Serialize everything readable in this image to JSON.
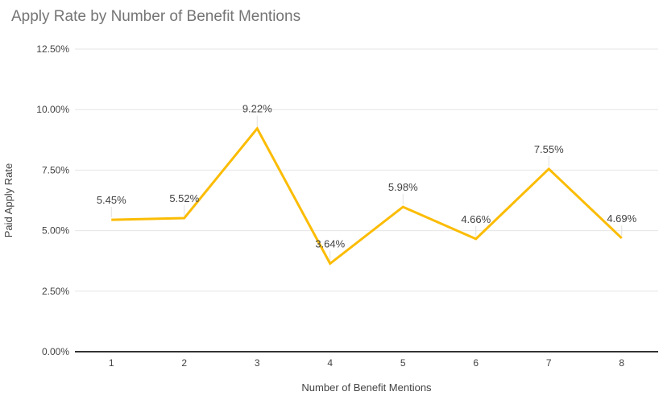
{
  "chart_data": {
    "type": "line",
    "title": "Apply Rate by Number of Benefit Mentions",
    "xlabel": "Number of Benefit Mentions",
    "ylabel": "Paid Apply Rate",
    "categories": [
      "1",
      "2",
      "3",
      "4",
      "5",
      "6",
      "7",
      "8"
    ],
    "series": [
      {
        "name": "Paid Apply Rate",
        "values": [
          5.45,
          5.52,
          9.22,
          3.64,
          5.98,
          4.66,
          7.55,
          4.69
        ],
        "value_labels": [
          "5.45%",
          "5.52%",
          "9.22%",
          "3.64%",
          "5.98%",
          "4.66%",
          "7.55%",
          "4.69%"
        ],
        "color": "#FBBC04"
      }
    ],
    "ylim": [
      0,
      12.5
    ],
    "y_ticks": [
      0,
      2.5,
      5,
      7.5,
      10,
      12.5
    ],
    "y_tick_labels": [
      "0.00%",
      "2.50%",
      "5.00%",
      "7.50%",
      "10.00%",
      "12.50%"
    ],
    "grid": "horizontal",
    "legend": "none",
    "colors": {
      "title": "#757575",
      "tick_label": "#424242",
      "data_label": "#424242",
      "axis_title": "#424242",
      "gridline": "#E6E6E6",
      "axis_line": "#333333",
      "leader_line": "#E0E0E0",
      "background": "#FFFFFF"
    }
  }
}
